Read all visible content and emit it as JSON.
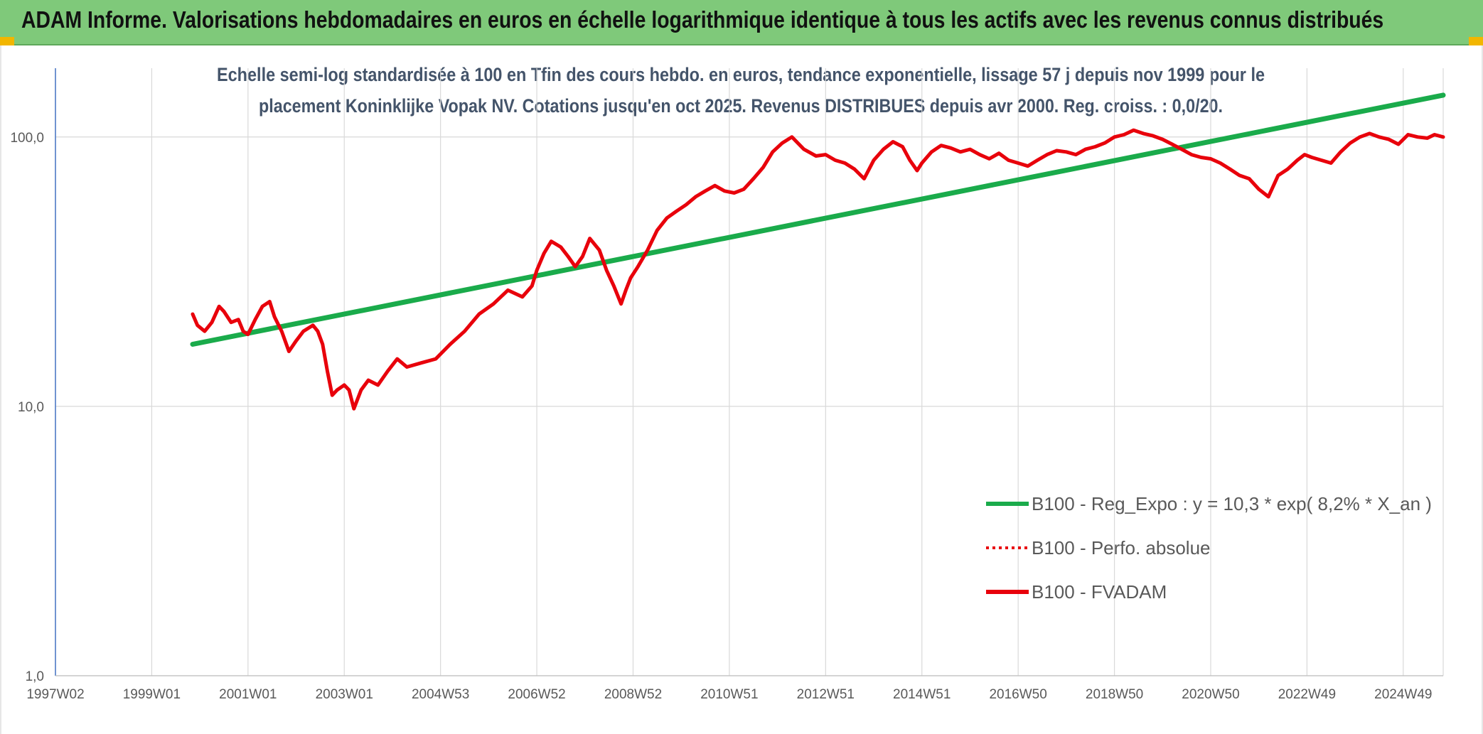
{
  "header": {
    "title": "ADAM Informe. Valorisations hebdomadaires en euros en échelle logarithmique identique à tous les actifs avec les revenus connus distribués"
  },
  "colors": {
    "header_bg": "#7fc97a",
    "corner_accent": "#f2b600",
    "trend_line": "#1aab4b",
    "price_line": "#e8000b",
    "grid": "#d9d9d9",
    "axis": "#4472c4",
    "subtitle": "#44546a"
  },
  "chart_data": {
    "type": "line",
    "title": "",
    "subtitle_lines": [
      "Echelle semi-log standardisée à 100 en Tfin des cours hebdo. en euros, tendance exponentielle, lissage 57 j depuis nov 1999 pour le",
      "placement Koninklijke Vopak NV. Cotations jusqu'en oct 2025. Revenus DISTRIBUES depuis avr 2000. Reg. croiss. : 0,0/20."
    ],
    "y_scale": "log",
    "ylim": [
      1,
      180
    ],
    "y_ticks": [
      {
        "value": 1,
        "label": "1,0"
      },
      {
        "value": 10,
        "label": "10,0"
      },
      {
        "value": 100,
        "label": "100,0"
      }
    ],
    "xlim": [
      1997.0,
      2025.83
    ],
    "x_ticks": [
      {
        "value": 1997.0,
        "label": "1997W02"
      },
      {
        "value": 1999.0,
        "label": "1999W01"
      },
      {
        "value": 2001.0,
        "label": "2001W01"
      },
      {
        "value": 2003.0,
        "label": "2003W01"
      },
      {
        "value": 2005.0,
        "label": "2004W53"
      },
      {
        "value": 2007.0,
        "label": "2006W52"
      },
      {
        "value": 2009.0,
        "label": "2008W52"
      },
      {
        "value": 2011.0,
        "label": "2010W51"
      },
      {
        "value": 2013.0,
        "label": "2012W51"
      },
      {
        "value": 2015.0,
        "label": "2014W51"
      },
      {
        "value": 2017.0,
        "label": "2016W50"
      },
      {
        "value": 2019.0,
        "label": "2018W50"
      },
      {
        "value": 2021.0,
        "label": "2020W50"
      },
      {
        "value": 2023.0,
        "label": "2022W49"
      },
      {
        "value": 2025.0,
        "label": "2024W49"
      }
    ],
    "grid": {
      "vertical": true,
      "horizontal": true
    },
    "legend_position": "bottom-right",
    "series": [
      {
        "name": "B100 - Reg_Expo : y = 10,3 * exp( 8,2% * X_an )",
        "style": "solid-thick",
        "color": "#1aab4b",
        "x": [
          1999.85,
          2025.83
        ],
        "y": [
          17.0,
          143.0
        ]
      },
      {
        "name": "B100 - Perfo. absolue",
        "style": "dotted",
        "color": "#e8000b",
        "x": [],
        "y": []
      },
      {
        "name": "B100 - FVADAM",
        "style": "solid",
        "color": "#e8000b",
        "x": [
          1999.85,
          1999.95,
          2000.1,
          2000.25,
          2000.4,
          2000.5,
          2000.65,
          2000.8,
          2000.9,
          2001.0,
          2001.15,
          2001.3,
          2001.45,
          2001.55,
          2001.7,
          2001.85,
          2002.0,
          2002.15,
          2002.35,
          2002.45,
          2002.55,
          2002.65,
          2002.75,
          2002.85,
          2003.0,
          2003.1,
          2003.2,
          2003.35,
          2003.5,
          2003.7,
          2003.9,
          2004.1,
          2004.3,
          2004.6,
          2004.9,
          2005.2,
          2005.5,
          2005.8,
          2006.1,
          2006.4,
          2006.7,
          2006.9,
          2007.0,
          2007.15,
          2007.3,
          2007.5,
          2007.65,
          2007.8,
          2007.95,
          2008.1,
          2008.3,
          2008.45,
          2008.6,
          2008.75,
          2008.85,
          2008.95,
          2009.1,
          2009.3,
          2009.5,
          2009.7,
          2009.9,
          2010.1,
          2010.3,
          2010.5,
          2010.7,
          2010.9,
          2011.1,
          2011.3,
          2011.5,
          2011.7,
          2011.9,
          2012.1,
          2012.3,
          2012.55,
          2012.8,
          2013.0,
          2013.2,
          2013.4,
          2013.6,
          2013.8,
          2014.0,
          2014.2,
          2014.4,
          2014.6,
          2014.75,
          2014.9,
          2015.0,
          2015.2,
          2015.4,
          2015.6,
          2015.8,
          2016.0,
          2016.2,
          2016.4,
          2016.6,
          2016.8,
          2017.0,
          2017.2,
          2017.4,
          2017.6,
          2017.8,
          2018.0,
          2018.2,
          2018.4,
          2018.6,
          2018.8,
          2019.0,
          2019.2,
          2019.4,
          2019.6,
          2019.8,
          2020.0,
          2020.2,
          2020.4,
          2020.6,
          2020.8,
          2021.0,
          2021.2,
          2021.4,
          2021.6,
          2021.8,
          2022.0,
          2022.2,
          2022.4,
          2022.6,
          2022.8,
          2022.95,
          2023.1,
          2023.3,
          2023.5,
          2023.7,
          2023.9,
          2024.1,
          2024.3,
          2024.5,
          2024.7,
          2024.9,
          2025.1,
          2025.3,
          2025.5,
          2025.65,
          2025.83
        ],
        "y": [
          22.0,
          20.0,
          19.0,
          20.5,
          23.5,
          22.5,
          20.5,
          21.0,
          19.0,
          18.5,
          21.0,
          23.5,
          24.5,
          21.5,
          19.0,
          16.0,
          17.5,
          19.0,
          20.0,
          19.0,
          17.0,
          13.5,
          11.0,
          11.5,
          12.0,
          11.5,
          9.8,
          11.5,
          12.5,
          12.0,
          13.5,
          15.0,
          14.0,
          14.5,
          15.0,
          17.0,
          19.0,
          22.0,
          24.0,
          27.0,
          25.5,
          28.0,
          32.0,
          37.0,
          41.0,
          39.0,
          36.0,
          33.0,
          36.0,
          42.0,
          38.0,
          32.0,
          28.0,
          24.0,
          27.0,
          30.0,
          33.0,
          38.0,
          45.0,
          50.0,
          53.0,
          56.0,
          60.0,
          63.0,
          66.0,
          63.0,
          62.0,
          64.0,
          70.0,
          77.0,
          88.0,
          95.0,
          100.0,
          90.0,
          85.0,
          86.0,
          82.0,
          80.0,
          76.0,
          70.0,
          82.0,
          90.0,
          96.0,
          92.0,
          82.0,
          75.0,
          80.0,
          88.0,
          93.0,
          91.0,
          88.0,
          90.0,
          86.0,
          83.0,
          87.0,
          82.0,
          80.0,
          78.0,
          82.0,
          86.0,
          89.0,
          88.0,
          86.0,
          90.0,
          92.0,
          95.0,
          100.0,
          102.0,
          106.0,
          103.0,
          101.0,
          98.0,
          94.0,
          90.0,
          86.0,
          84.0,
          83.0,
          80.0,
          76.0,
          72.0,
          70.0,
          64.0,
          60.0,
          72.0,
          76.0,
          82.0,
          86.0,
          84.0,
          82.0,
          80.0,
          88.0,
          95.0,
          100.0,
          103.0,
          100.0,
          98.0,
          94.0,
          102.0,
          100.0,
          99.0,
          102.0,
          100.0
        ]
      }
    ]
  }
}
